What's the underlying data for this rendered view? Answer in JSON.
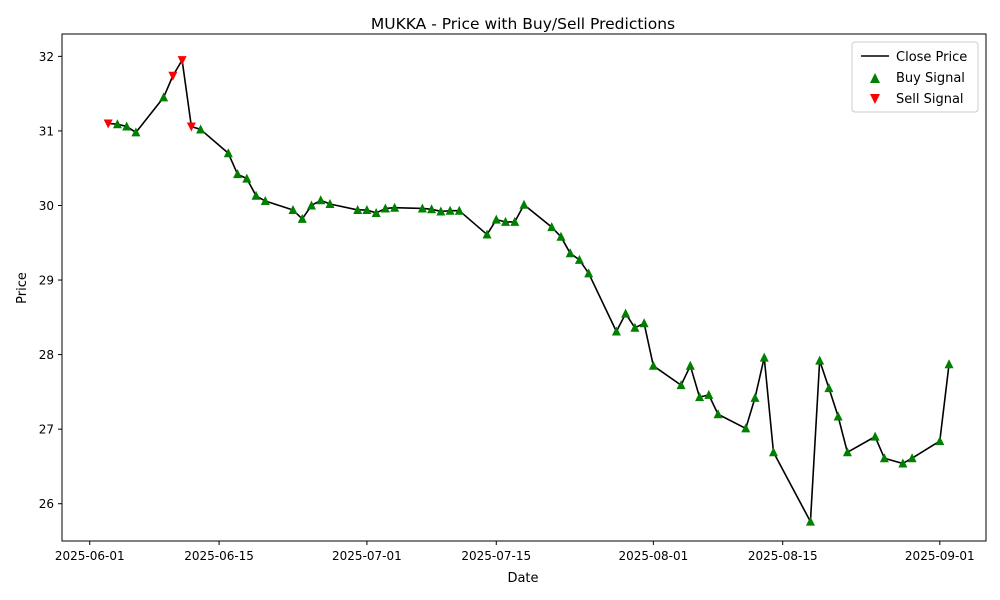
{
  "chart_data": {
    "type": "line",
    "title": "MUKKA - Price with Buy/Sell Predictions",
    "xlabel": "Date",
    "ylabel": "Price",
    "xlim": [
      "2025-05-29",
      "2025-09-06"
    ],
    "ylim": [
      25.5,
      32.3
    ],
    "x_ticks": [
      "2025-06-01",
      "2025-06-15",
      "2025-07-01",
      "2025-07-15",
      "2025-08-01",
      "2025-08-15",
      "2025-09-01"
    ],
    "y_ticks": [
      26,
      27,
      28,
      29,
      30,
      31,
      32
    ],
    "grid": false,
    "legend_position": "upper right",
    "colors": {
      "close": "#000000",
      "buy": "#008000",
      "sell": "#ff0000"
    },
    "series": [
      {
        "name": "Close Price",
        "kind": "line",
        "points": [
          [
            "2025-06-03",
            31.1
          ],
          [
            "2025-06-04",
            31.09
          ],
          [
            "2025-06-05",
            31.06
          ],
          [
            "2025-06-06",
            30.98
          ],
          [
            "2025-06-09",
            31.45
          ],
          [
            "2025-06-10",
            31.74
          ],
          [
            "2025-06-11",
            31.95
          ],
          [
            "2025-06-12",
            31.06
          ],
          [
            "2025-06-13",
            31.02
          ],
          [
            "2025-06-16",
            30.7
          ],
          [
            "2025-06-17",
            30.42
          ],
          [
            "2025-06-18",
            30.36
          ],
          [
            "2025-06-19",
            30.13
          ],
          [
            "2025-06-20",
            30.06
          ],
          [
            "2025-06-23",
            29.94
          ],
          [
            "2025-06-24",
            29.82
          ],
          [
            "2025-06-25",
            30.0
          ],
          [
            "2025-06-26",
            30.07
          ],
          [
            "2025-06-27",
            30.02
          ],
          [
            "2025-06-30",
            29.94
          ],
          [
            "2025-07-01",
            29.94
          ],
          [
            "2025-07-02",
            29.9
          ],
          [
            "2025-07-03",
            29.96
          ],
          [
            "2025-07-04",
            29.97
          ],
          [
            "2025-07-07",
            29.96
          ],
          [
            "2025-07-08",
            29.95
          ],
          [
            "2025-07-09",
            29.92
          ],
          [
            "2025-07-10",
            29.93
          ],
          [
            "2025-07-11",
            29.93
          ],
          [
            "2025-07-14",
            29.61
          ],
          [
            "2025-07-15",
            29.81
          ],
          [
            "2025-07-16",
            29.78
          ],
          [
            "2025-07-17",
            29.78
          ],
          [
            "2025-07-18",
            30.01
          ],
          [
            "2025-07-21",
            29.71
          ],
          [
            "2025-07-22",
            29.58
          ],
          [
            "2025-07-23",
            29.36
          ],
          [
            "2025-07-24",
            29.27
          ],
          [
            "2025-07-25",
            29.09
          ],
          [
            "2025-07-28",
            28.31
          ],
          [
            "2025-07-29",
            28.55
          ],
          [
            "2025-07-30",
            28.36
          ],
          [
            "2025-07-31",
            28.42
          ],
          [
            "2025-08-01",
            27.85
          ],
          [
            "2025-08-04",
            27.59
          ],
          [
            "2025-08-05",
            27.85
          ],
          [
            "2025-08-06",
            27.43
          ],
          [
            "2025-08-07",
            27.46
          ],
          [
            "2025-08-08",
            27.2
          ],
          [
            "2025-08-11",
            27.01
          ],
          [
            "2025-08-12",
            27.42
          ],
          [
            "2025-08-13",
            27.96
          ],
          [
            "2025-08-14",
            26.69
          ],
          [
            "2025-08-18",
            25.76
          ],
          [
            "2025-08-19",
            27.92
          ],
          [
            "2025-08-20",
            27.55
          ],
          [
            "2025-08-21",
            27.17
          ],
          [
            "2025-08-22",
            26.69
          ],
          [
            "2025-08-25",
            26.9
          ],
          [
            "2025-08-26",
            26.61
          ],
          [
            "2025-08-28",
            26.54
          ],
          [
            "2025-08-29",
            26.61
          ],
          [
            "2025-09-01",
            26.84
          ],
          [
            "2025-09-02",
            27.87
          ]
        ]
      },
      {
        "name": "Buy Signal",
        "kind": "marker-up",
        "points": [
          [
            "2025-06-04",
            31.09
          ],
          [
            "2025-06-05",
            31.06
          ],
          [
            "2025-06-06",
            30.98
          ],
          [
            "2025-06-09",
            31.45
          ],
          [
            "2025-06-13",
            31.02
          ],
          [
            "2025-06-16",
            30.7
          ],
          [
            "2025-06-17",
            30.42
          ],
          [
            "2025-06-18",
            30.36
          ],
          [
            "2025-06-19",
            30.13
          ],
          [
            "2025-06-20",
            30.06
          ],
          [
            "2025-06-23",
            29.94
          ],
          [
            "2025-06-24",
            29.82
          ],
          [
            "2025-06-25",
            30.0
          ],
          [
            "2025-06-26",
            30.07
          ],
          [
            "2025-06-27",
            30.02
          ],
          [
            "2025-06-30",
            29.94
          ],
          [
            "2025-07-01",
            29.94
          ],
          [
            "2025-07-02",
            29.9
          ],
          [
            "2025-07-03",
            29.96
          ],
          [
            "2025-07-04",
            29.97
          ],
          [
            "2025-07-07",
            29.96
          ],
          [
            "2025-07-08",
            29.95
          ],
          [
            "2025-07-09",
            29.92
          ],
          [
            "2025-07-10",
            29.93
          ],
          [
            "2025-07-11",
            29.93
          ],
          [
            "2025-07-14",
            29.61
          ],
          [
            "2025-07-15",
            29.81
          ],
          [
            "2025-07-16",
            29.78
          ],
          [
            "2025-07-17",
            29.78
          ],
          [
            "2025-07-18",
            30.01
          ],
          [
            "2025-07-21",
            29.71
          ],
          [
            "2025-07-22",
            29.58
          ],
          [
            "2025-07-23",
            29.36
          ],
          [
            "2025-07-24",
            29.27
          ],
          [
            "2025-07-25",
            29.09
          ],
          [
            "2025-07-28",
            28.31
          ],
          [
            "2025-07-29",
            28.55
          ],
          [
            "2025-07-30",
            28.36
          ],
          [
            "2025-07-31",
            28.42
          ],
          [
            "2025-08-01",
            27.85
          ],
          [
            "2025-08-04",
            27.59
          ],
          [
            "2025-08-05",
            27.85
          ],
          [
            "2025-08-06",
            27.43
          ],
          [
            "2025-08-07",
            27.46
          ],
          [
            "2025-08-08",
            27.2
          ],
          [
            "2025-08-11",
            27.01
          ],
          [
            "2025-08-12",
            27.42
          ],
          [
            "2025-08-13",
            27.96
          ],
          [
            "2025-08-14",
            26.69
          ],
          [
            "2025-08-18",
            25.76
          ],
          [
            "2025-08-19",
            27.92
          ],
          [
            "2025-08-20",
            27.55
          ],
          [
            "2025-08-21",
            27.17
          ],
          [
            "2025-08-22",
            26.69
          ],
          [
            "2025-08-25",
            26.9
          ],
          [
            "2025-08-26",
            26.61
          ],
          [
            "2025-08-28",
            26.54
          ],
          [
            "2025-08-29",
            26.61
          ],
          [
            "2025-09-01",
            26.84
          ],
          [
            "2025-09-02",
            27.87
          ]
        ]
      },
      {
        "name": "Sell Signal",
        "kind": "marker-down",
        "points": [
          [
            "2025-06-03",
            31.1
          ],
          [
            "2025-06-10",
            31.74
          ],
          [
            "2025-06-11",
            31.95
          ],
          [
            "2025-06-12",
            31.06
          ]
        ]
      }
    ]
  }
}
